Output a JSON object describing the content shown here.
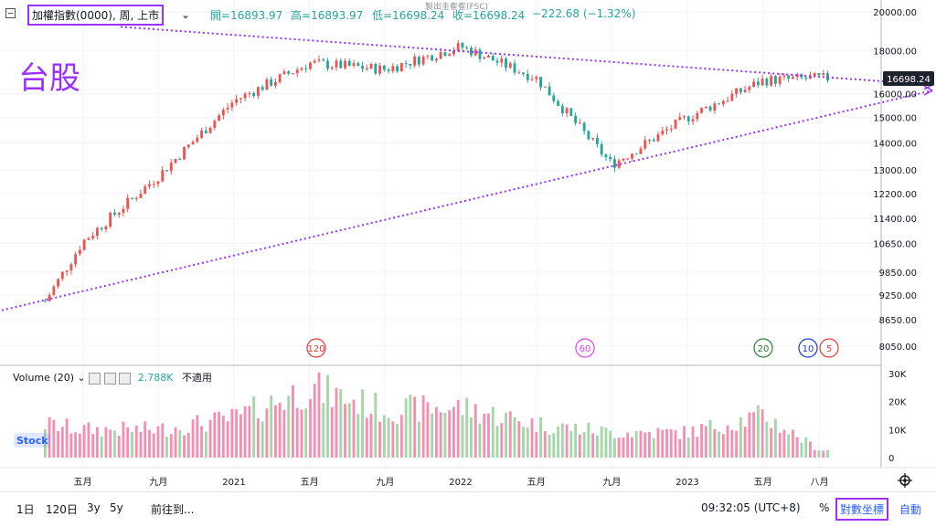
{
  "header": {
    "collapse_icon": "minus-square-icon",
    "symbol": "加權指數(0000), 周, 上市",
    "open_label": "開=16893.97",
    "high_label": "高=16893.97",
    "low_label": "低=16698.24",
    "close_label": "收=16698.24",
    "change_label": "−222.68 (−1.32%)",
    "overlay_note": "製出圭隺隺(FSC)",
    "overlay_label": "台股"
  },
  "price_axis": {
    "ticks": [
      "20000.00",
      "18000.00",
      "16000.00",
      "15000.00",
      "14000.00",
      "13000.00",
      "12200.00",
      "11400.00",
      "10650.00",
      "9850.00",
      "9250.00",
      "8650.00",
      "8050.00"
    ],
    "last_label": "16698.24"
  },
  "ma_badges": [
    {
      "label": "120",
      "color": "#e53935"
    },
    {
      "label": "60",
      "color": "#e040fb"
    },
    {
      "label": "20",
      "color": "#2e7d32"
    },
    {
      "label": "10",
      "color": "#1a3ccf"
    },
    {
      "label": "5",
      "color": "#e53935"
    }
  ],
  "volume": {
    "legend_label": "Volume (20)",
    "value": "2.788K",
    "status": "不適用",
    "ticks": [
      "30K",
      "20K",
      "10K",
      "0"
    ],
    "logo_text": "Stock"
  },
  "x_axis": {
    "labels": [
      "五月",
      "九月",
      "2021",
      "五月",
      "九月",
      "2022",
      "五月",
      "九月",
      "2023",
      "五月",
      "八月"
    ]
  },
  "toolbar": {
    "ranges": [
      "1日",
      "120日",
      "3y",
      "5y"
    ],
    "goto": "前往到...",
    "time": "09:32:05 (UTC+8)",
    "percent": "%",
    "log": "對數坐標",
    "auto": "自動"
  },
  "colors": {
    "up": "#ef5350",
    "down": "#26a69a",
    "vol_up": "#f48fb1",
    "vol_down": "#a5d6a7",
    "trend": "#9b30ff"
  },
  "chart_data": {
    "type": "candlestick",
    "scale": "log",
    "ylim": [
      7900,
      21000
    ],
    "x": [
      "2020-03",
      "2020-05",
      "2020-09",
      "2021-01",
      "2021-05",
      "2021-09",
      "2022-01",
      "2022-05",
      "2022-09",
      "2023-01",
      "2023-05",
      "2023-08"
    ],
    "close": [
      9100,
      10700,
      12800,
      15700,
      17400,
      17100,
      18200,
      16700,
      13200,
      15000,
      16600,
      16698.24
    ],
    "volume_k": [
      12,
      10,
      10,
      14,
      25,
      17,
      18,
      12,
      9,
      9,
      15,
      2.788
    ],
    "last": {
      "open": 16893.97,
      "high": 16893.97,
      "low": 16698.24,
      "close": 16698.24,
      "change": -222.68,
      "change_pct": -1.32
    },
    "moving_averages": [
      "120",
      "60",
      "20",
      "10",
      "5"
    ],
    "trendlines": [
      {
        "name": "upper",
        "from": [
          "2020-07",
          19200
        ],
        "to": [
          "2023-09",
          16700
        ]
      },
      {
        "name": "lower",
        "from": [
          "2019-12",
          8800
        ],
        "to": [
          "2023-09",
          15200
        ]
      }
    ],
    "xlabel": "",
    "ylabel": ""
  }
}
